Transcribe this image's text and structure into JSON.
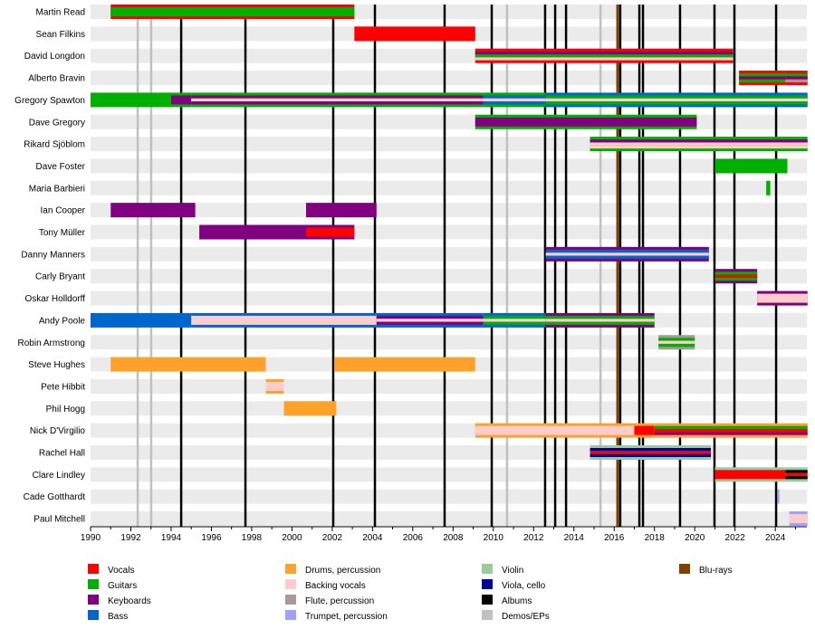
{
  "chart_data": {
    "type": "timeline",
    "title": "",
    "xlabel": "",
    "ylabel": "",
    "xlim": [
      1990,
      2025.6
    ],
    "x_ticks": [
      "1990",
      "1992",
      "1994",
      "1996",
      "1998",
      "2000",
      "2002",
      "2004",
      "2006",
      "2008",
      "2010",
      "2012",
      "2014",
      "2016",
      "2018",
      "2020",
      "2022",
      "2024"
    ],
    "grid": false,
    "legend_position": "bottom",
    "roles": {
      "Vocals": "#ff0000",
      "Guitars": "#00b000",
      "Keyboards": "#800080",
      "Bass": "#0066cc",
      "Drums, percussion": "#ffa12a",
      "Backing vocals": "#ffcccc",
      "Flute, percussion": "#a89898",
      "Trumpet, percussion": "#a0a0ff",
      "Violin": "#99cc99",
      "Viola, cello": "#000099",
      "Albums": "#000000",
      "Demos/EPs": "#c0c0c0",
      "Blu-rays": "#804000"
    },
    "legend": [
      [
        "Vocals",
        "Guitars",
        "Keyboards",
        "Bass"
      ],
      [
        "Drums, percussion",
        "Backing vocals",
        "Flute, percussion",
        "Trumpet, percussion"
      ],
      [
        "Violin",
        "Viola, cello",
        "Albums",
        "Demos/EPs"
      ],
      [
        "Blu-rays"
      ]
    ],
    "members": [
      {
        "name": "Martin Read",
        "segments": [
          {
            "from": 1991,
            "to": 2003.1,
            "roles": [
              "Vocals",
              "Guitars"
            ]
          }
        ]
      },
      {
        "name": "Sean Filkins",
        "segments": [
          {
            "from": 2003.1,
            "to": 2009.1,
            "roles": [
              "Vocals"
            ]
          }
        ]
      },
      {
        "name": "David Longdon",
        "segments": [
          {
            "from": 2009.1,
            "to": 2021.9,
            "roles": [
              "Vocals",
              "Keyboards",
              "Guitars",
              "Backing vocals"
            ]
          }
        ]
      },
      {
        "name": "Alberto Bravin",
        "segments": [
          {
            "from": 2022.2,
            "to": 2024.5,
            "roles": [
              "Vocals",
              "Guitars",
              "Keyboards",
              "Guitars"
            ]
          },
          {
            "from": 2024.5,
            "to": 2025.6,
            "roles": [
              "Vocals",
              "Guitars",
              "Keyboards",
              "Flute, percussion"
            ]
          }
        ]
      },
      {
        "name": "Gregory Spawton",
        "segments": [
          {
            "from": 1990,
            "to": 1994,
            "roles": [
              "Guitars"
            ]
          },
          {
            "from": 1994,
            "to": 1995,
            "roles": [
              "Guitars",
              "Keyboards"
            ]
          },
          {
            "from": 1995,
            "to": 2009.5,
            "roles": [
              "Guitars",
              "Keyboards",
              "Backing vocals",
              "Keyboards"
            ]
          },
          {
            "from": 2009.5,
            "to": 2012.6,
            "roles": [
              "Guitars",
              "Bass",
              "Backing vocals",
              "Bass"
            ]
          },
          {
            "from": 2012.6,
            "to": 2025.6,
            "roles": [
              "Bass",
              "Guitars",
              "Backing vocals",
              "Guitars"
            ]
          }
        ]
      },
      {
        "name": "Dave Gregory",
        "segments": [
          {
            "from": 2009.1,
            "to": 2020.1,
            "roles": [
              "Guitars",
              "Keyboards"
            ]
          }
        ]
      },
      {
        "name": "Rikard Sjöblom",
        "segments": [
          {
            "from": 2014.8,
            "to": 2025.6,
            "roles": [
              "Guitars",
              "Keyboards",
              "Backing vocals",
              "Backing vocals"
            ]
          }
        ]
      },
      {
        "name": "Dave Foster",
        "segments": [
          {
            "from": 2021,
            "to": 2024.6,
            "roles": [
              "Guitars"
            ]
          }
        ]
      },
      {
        "name": "Maria Barbieri",
        "segments": [
          {
            "from": 2023.55,
            "to": 2023.75,
            "roles": [
              "Guitars"
            ]
          }
        ]
      },
      {
        "name": "Ian Cooper",
        "segments": [
          {
            "from": 1991,
            "to": 1995.2,
            "roles": [
              "Keyboards"
            ]
          },
          {
            "from": 2000.7,
            "to": 2004.2,
            "roles": [
              "Keyboards"
            ]
          }
        ]
      },
      {
        "name": "Tony Müller",
        "segments": [
          {
            "from": 1995.4,
            "to": 2000.7,
            "roles": [
              "Keyboards"
            ]
          },
          {
            "from": 2000.7,
            "to": 2003.1,
            "roles": [
              "Keyboards",
              "Vocals"
            ]
          }
        ]
      },
      {
        "name": "Danny Manners",
        "segments": [
          {
            "from": 2012.6,
            "to": 2020.7,
            "roles": [
              "Keyboards",
              "Bass",
              "Backing vocals",
              "Bass"
            ]
          }
        ]
      },
      {
        "name": "Carly Bryant",
        "segments": [
          {
            "from": 2021,
            "to": 2023.1,
            "roles": [
              "Keyboards",
              "Guitars",
              "Vocals",
              "Guitars"
            ]
          }
        ]
      },
      {
        "name": "Oskar Holldorff",
        "segments": [
          {
            "from": 2023.1,
            "to": 2025.6,
            "roles": [
              "Keyboards",
              "Backing vocals"
            ]
          }
        ]
      },
      {
        "name": "Andy Poole",
        "segments": [
          {
            "from": 1990,
            "to": 1995,
            "roles": [
              "Bass"
            ]
          },
          {
            "from": 1995,
            "to": 2004.2,
            "roles": [
              "Bass",
              "Backing vocals"
            ]
          },
          {
            "from": 2004.2,
            "to": 2009.5,
            "roles": [
              "Bass",
              "Keyboards",
              "Backing vocals",
              "Keyboards"
            ]
          },
          {
            "from": 2009.5,
            "to": 2012.6,
            "roles": [
              "Bass",
              "Guitars",
              "Backing vocals",
              "Guitars"
            ]
          },
          {
            "from": 2012.6,
            "to": 2018,
            "roles": [
              "Keyboards",
              "Guitars",
              "Backing vocals",
              "Guitars"
            ]
          }
        ]
      },
      {
        "name": "Robin Armstrong",
        "segments": [
          {
            "from": 2018.2,
            "to": 2020,
            "roles": [
              "Flute, percussion",
              "Guitars",
              "Backing vocals",
              "Guitars"
            ]
          }
        ]
      },
      {
        "name": "Steve Hughes",
        "segments": [
          {
            "from": 1991,
            "to": 1998.7,
            "roles": [
              "Drums, percussion"
            ]
          },
          {
            "from": 2002.1,
            "to": 2009.1,
            "roles": [
              "Drums, percussion"
            ]
          }
        ]
      },
      {
        "name": "Pete Hibbit",
        "segments": [
          {
            "from": 1998.7,
            "to": 1999.6,
            "roles": [
              "Drums, percussion",
              "Backing vocals"
            ]
          }
        ]
      },
      {
        "name": "Phil Hogg",
        "segments": [
          {
            "from": 1999.6,
            "to": 2002.2,
            "roles": [
              "Drums, percussion"
            ]
          }
        ]
      },
      {
        "name": "Nick D'Virgilio",
        "segments": [
          {
            "from": 2009.1,
            "to": 2017,
            "roles": [
              "Drums, percussion",
              "Backing vocals"
            ]
          },
          {
            "from": 2017,
            "to": 2018,
            "roles": [
              "Drums, percussion",
              "Vocals"
            ]
          },
          {
            "from": 2018,
            "to": 2025.6,
            "roles": [
              "Drums, percussion",
              "Guitars",
              "Vocals",
              "Keyboards"
            ]
          }
        ]
      },
      {
        "name": "Rachel Hall",
        "segments": [
          {
            "from": 2014.8,
            "to": 2020.8,
            "roles": [
              "Violin",
              "Viola, cello",
              "Vocals",
              "Viola, cello"
            ]
          }
        ]
      },
      {
        "name": "Clare Lindley",
        "segments": [
          {
            "from": 2021,
            "to": 2024.5,
            "roles": [
              "Violin",
              "Vocals"
            ]
          },
          {
            "from": 2024.5,
            "to": 2025.6,
            "roles": [
              "Violin",
              "Albums",
              "Vocals",
              "Albums"
            ]
          }
        ]
      },
      {
        "name": "Cade Gotthardt",
        "segments": [
          {
            "from": 2024.1,
            "to": 2024.2,
            "roles": [
              "Trumpet, percussion"
            ]
          }
        ]
      },
      {
        "name": "Paul Mitchell",
        "segments": [
          {
            "from": 2024.7,
            "to": 2025.6,
            "roles": [
              "Trumpet, percussion",
              "Backing vocals"
            ]
          }
        ]
      }
    ],
    "releases": {
      "Albums": [
        1994.5,
        1997.69,
        2002.05,
        2004.12,
        2007.58,
        2009.92,
        2012.57,
        2013.07,
        2013.61,
        2016.3,
        2017.25,
        2017.43,
        2019.27,
        2020.98,
        2021.97,
        2024.04
      ],
      "Demos/EPs": [
        1992.34,
        1993.01,
        2010.68,
        2015.32
      ],
      "Blu-rays": [
        2016.17
      ]
    }
  }
}
